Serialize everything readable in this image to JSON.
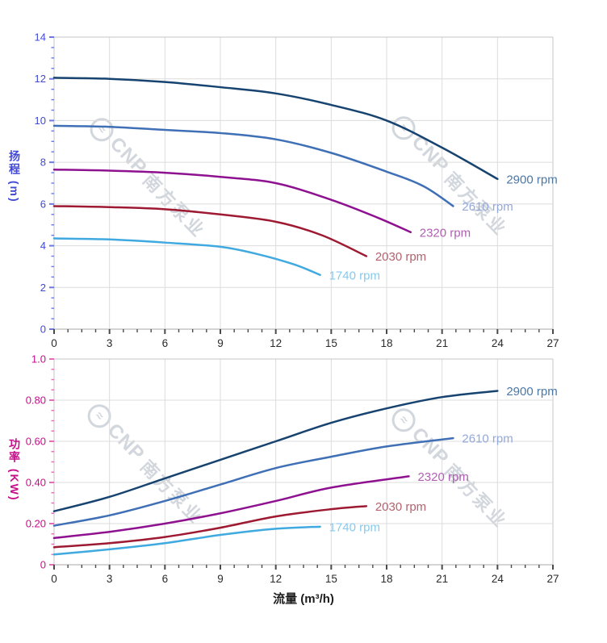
{
  "watermark": {
    "logo_glyph": "≈",
    "brand": "CNP",
    "brand_cn": "南方泵业",
    "color": "#ced2da"
  },
  "x_axis_title": "流量 (m³/h)",
  "chart_data": [
    {
      "type": "line",
      "name": "head",
      "title": "",
      "xlabel": "流量 (m³/h)",
      "ylabel": "扬程 (m)",
      "xlim": [
        0,
        27
      ],
      "ylim": [
        0,
        14
      ],
      "x_ticks": [
        0,
        3,
        6,
        9,
        12,
        15,
        18,
        21,
        24,
        27
      ],
      "y_ticks": [
        {
          "v": 0,
          "label": "0"
        },
        {
          "v": 2,
          "label": "2"
        },
        {
          "v": 4,
          "label": "4"
        },
        {
          "v": 6,
          "label": "6"
        },
        {
          "v": 8,
          "label": "8"
        },
        {
          "v": 10,
          "label": "10"
        },
        {
          "v": 12,
          "label": "12"
        },
        {
          "v": 14,
          "label": "14"
        }
      ],
      "axis_color": "#4149d2",
      "tick_color": "#6b79e0",
      "grid": true,
      "legend_position": "curve-end-labels",
      "series": [
        {
          "name": "2900 rpm",
          "color": "#16436f",
          "label_color": "#4a77a6",
          "points": [
            [
              0,
              12.05
            ],
            [
              3,
              12.0
            ],
            [
              6,
              11.85
            ],
            [
              9,
              11.6
            ],
            [
              12,
              11.3
            ],
            [
              15,
              10.75
            ],
            [
              18,
              10.0
            ],
            [
              21,
              8.7
            ],
            [
              24,
              7.2
            ]
          ]
        },
        {
          "name": "2610 rpm",
          "color": "#3f6fb5",
          "label_color": "#93a9d8",
          "points": [
            [
              0,
              9.75
            ],
            [
              3,
              9.7
            ],
            [
              6,
              9.55
            ],
            [
              9,
              9.4
            ],
            [
              12,
              9.1
            ],
            [
              15,
              8.45
            ],
            [
              18,
              7.55
            ],
            [
              20,
              6.85
            ],
            [
              21.6,
              5.9
            ]
          ]
        },
        {
          "name": "2320 rpm",
          "color": "#8e1190",
          "label_color": "#b15fb3",
          "points": [
            [
              0,
              7.65
            ],
            [
              3,
              7.6
            ],
            [
              6,
              7.5
            ],
            [
              9,
              7.3
            ],
            [
              12,
              7.0
            ],
            [
              15,
              6.2
            ],
            [
              17.5,
              5.35
            ],
            [
              19.3,
              4.65
            ]
          ]
        },
        {
          "name": "2030 rpm",
          "color": "#9e1932",
          "label_color": "#b2636f",
          "points": [
            [
              0,
              5.9
            ],
            [
              3,
              5.85
            ],
            [
              6,
              5.75
            ],
            [
              9,
              5.5
            ],
            [
              12,
              5.15
            ],
            [
              14.5,
              4.5
            ],
            [
              16.9,
              3.5
            ]
          ]
        },
        {
          "name": "1740 rpm",
          "color": "#3fa9e0",
          "label_color": "#87c9ef",
          "points": [
            [
              0,
              4.35
            ],
            [
              3,
              4.3
            ],
            [
              6,
              4.15
            ],
            [
              9,
              3.95
            ],
            [
              11,
              3.6
            ],
            [
              13,
              3.1
            ],
            [
              14.4,
              2.6
            ]
          ]
        }
      ]
    },
    {
      "type": "line",
      "name": "power",
      "title": "",
      "xlabel": "流量 (m³/h)",
      "ylabel": "功率 (KW)",
      "xlim": [
        0,
        27
      ],
      "ylim": [
        0,
        1
      ],
      "x_ticks": [
        0,
        3,
        6,
        9,
        12,
        15,
        18,
        21,
        24,
        27
      ],
      "y_ticks": [
        {
          "v": 0,
          "label": "0"
        },
        {
          "v": 0.2,
          "label": "0.20"
        },
        {
          "v": 0.4,
          "label": "0.40"
        },
        {
          "v": 0.6,
          "label": "0.60"
        },
        {
          "v": 0.8,
          "label": "0.80"
        },
        {
          "v": 1,
          "label": "1.0"
        }
      ],
      "axis_color": "#c70d89",
      "tick_color": "#e26db4",
      "grid": true,
      "legend_position": "curve-end-labels",
      "series": [
        {
          "name": "2900 rpm",
          "color": "#16436f",
          "label_color": "#4a77a6",
          "points": [
            [
              0,
              0.26
            ],
            [
              3,
              0.33
            ],
            [
              6,
              0.42
            ],
            [
              9,
              0.51
            ],
            [
              12,
              0.6
            ],
            [
              15,
              0.69
            ],
            [
              18,
              0.76
            ],
            [
              21,
              0.815
            ],
            [
              24,
              0.845
            ]
          ]
        },
        {
          "name": "2610 rpm",
          "color": "#3f6fb5",
          "label_color": "#93a9d8",
          "points": [
            [
              0,
              0.19
            ],
            [
              3,
              0.24
            ],
            [
              6,
              0.31
            ],
            [
              9,
              0.39
            ],
            [
              12,
              0.47
            ],
            [
              15,
              0.525
            ],
            [
              18,
              0.575
            ],
            [
              21.6,
              0.615
            ]
          ]
        },
        {
          "name": "2320 rpm",
          "color": "#8e1190",
          "label_color": "#b15fb3",
          "points": [
            [
              0,
              0.13
            ],
            [
              3,
              0.16
            ],
            [
              6,
              0.2
            ],
            [
              9,
              0.25
            ],
            [
              12,
              0.31
            ],
            [
              15,
              0.375
            ],
            [
              19.2,
              0.43
            ]
          ]
        },
        {
          "name": "2030 rpm",
          "color": "#9e1932",
          "label_color": "#b2636f",
          "points": [
            [
              0,
              0.085
            ],
            [
              3,
              0.105
            ],
            [
              6,
              0.135
            ],
            [
              9,
              0.18
            ],
            [
              12,
              0.235
            ],
            [
              15,
              0.27
            ],
            [
              16.9,
              0.285
            ]
          ]
        },
        {
          "name": "1740 rpm",
          "color": "#3fa9e0",
          "label_color": "#87c9ef",
          "points": [
            [
              0,
              0.05
            ],
            [
              3,
              0.075
            ],
            [
              6,
              0.105
            ],
            [
              9,
              0.145
            ],
            [
              12,
              0.175
            ],
            [
              14.4,
              0.185
            ]
          ]
        }
      ]
    }
  ]
}
